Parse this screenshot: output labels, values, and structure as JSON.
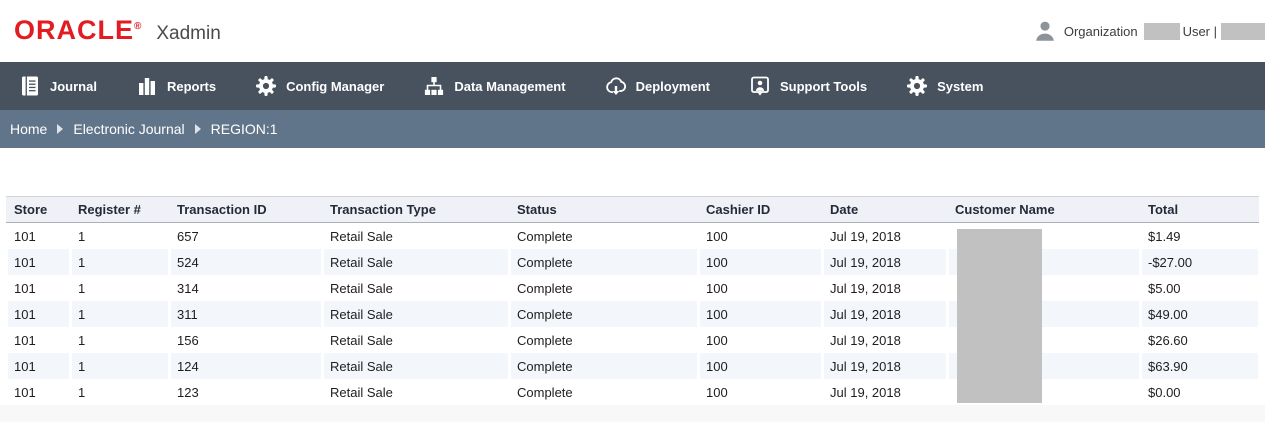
{
  "header": {
    "logo": "ORACLE",
    "logo_registered": "®",
    "app_name": "Xadmin",
    "organization_label": "Organization",
    "user_label": "User |",
    "person_icon": "person-icon",
    "redaction_color": "#c1c1c1"
  },
  "nav": {
    "background": "#47525e",
    "items": [
      {
        "label": "Journal",
        "icon": "journal-icon"
      },
      {
        "label": "Reports",
        "icon": "bar-chart-icon"
      },
      {
        "label": "Config Manager",
        "icon": "gear-icon"
      },
      {
        "label": "Data Management",
        "icon": "sitemap-icon"
      },
      {
        "label": "Deployment",
        "icon": "cloud-download-icon"
      },
      {
        "label": "Support Tools",
        "icon": "support-person-icon"
      },
      {
        "label": "System",
        "icon": "gear-icon"
      }
    ]
  },
  "breadcrumb": {
    "background": "#61758a",
    "items": [
      "Home",
      "Electronic Journal",
      "REGION:1"
    ]
  },
  "table": {
    "columns": [
      "Store",
      "Register #",
      "Transaction ID",
      "Transaction Type",
      "Status",
      "Cashier ID",
      "Date",
      "Customer Name",
      "Total"
    ],
    "rows": [
      [
        "101",
        "1",
        "657",
        "Retail Sale",
        "Complete",
        "100",
        "Jul 19, 2018",
        "",
        "$1.49"
      ],
      [
        "101",
        "1",
        "524",
        "Retail Sale",
        "Complete",
        "100",
        "Jul 19, 2018",
        "",
        "-$27.00"
      ],
      [
        "101",
        "1",
        "314",
        "Retail Sale",
        "Complete",
        "100",
        "Jul 19, 2018",
        "",
        "$5.00"
      ],
      [
        "101",
        "1",
        "311",
        "Retail Sale",
        "Complete",
        "100",
        "Jul 19, 2018",
        "",
        "$49.00"
      ],
      [
        "101",
        "1",
        "156",
        "Retail Sale",
        "Complete",
        "100",
        "Jul 19, 2018",
        "",
        "$26.60"
      ],
      [
        "101",
        "1",
        "124",
        "Retail Sale",
        "Complete",
        "100",
        "Jul 19, 2018",
        "",
        "$63.90"
      ],
      [
        "101",
        "1",
        "123",
        "Retail Sale",
        "Complete",
        "100",
        "Jul 19, 2018",
        "",
        "$0.00"
      ]
    ],
    "customer_name_redacted": true
  },
  "colors": {
    "oracle_red": "#e21c21",
    "navbar_bg": "#47525e",
    "breadcrumb_bg": "#61758a",
    "table_header_bg": "#eff1f6",
    "row_stripe": "#f3f6fa",
    "redaction_gray": "#c1c1c1",
    "footer_bg": "#f8f8f8"
  }
}
